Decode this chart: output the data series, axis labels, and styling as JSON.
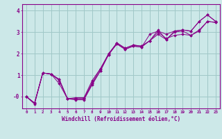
{
  "xlabel": "Windchill (Refroidissement éolien,°C)",
  "bg_color": "#cce8e8",
  "grid_color": "#a0c8c8",
  "line_color": "#880088",
  "xlim": [
    -0.5,
    23.5
  ],
  "ylim": [
    -0.55,
    4.3
  ],
  "xticks": [
    0,
    1,
    2,
    3,
    4,
    5,
    6,
    7,
    8,
    9,
    10,
    11,
    12,
    13,
    14,
    15,
    16,
    17,
    18,
    19,
    20,
    21,
    22,
    23
  ],
  "yticks": [
    0,
    1,
    2,
    3,
    4
  ],
  "ytick_labels": [
    "-0",
    "1",
    "2",
    "3",
    "4"
  ],
  "series": [
    [
      0.0,
      -0.3,
      1.1,
      1.05,
      0.8,
      -0.1,
      -0.1,
      -0.1,
      0.65,
      1.3,
      1.95,
      2.45,
      2.2,
      2.35,
      2.3,
      2.9,
      3.05,
      2.9,
      3.05,
      3.1,
      3.05,
      3.5,
      3.8,
      3.5
    ],
    [
      0.0,
      -0.35,
      1.1,
      1.05,
      0.6,
      -0.1,
      -0.15,
      -0.15,
      0.55,
      1.2,
      2.0,
      2.5,
      2.25,
      2.4,
      2.35,
      2.6,
      3.1,
      2.65,
      3.05,
      3.1,
      3.05,
      3.5,
      3.8,
      3.5
    ],
    [
      0.0,
      -0.3,
      1.1,
      1.05,
      0.8,
      -0.1,
      -0.05,
      -0.05,
      0.75,
      1.3,
      2.0,
      2.45,
      2.2,
      2.35,
      2.3,
      2.6,
      2.9,
      2.65,
      3.0,
      3.05,
      2.85,
      3.1,
      3.5,
      3.45
    ],
    [
      0.0,
      -0.3,
      1.1,
      1.05,
      0.75,
      -0.1,
      -0.1,
      -0.1,
      0.6,
      1.2,
      1.95,
      2.5,
      2.25,
      2.4,
      2.35,
      2.6,
      3.0,
      2.7,
      2.85,
      2.9,
      2.85,
      3.05,
      3.5,
      3.45
    ]
  ]
}
